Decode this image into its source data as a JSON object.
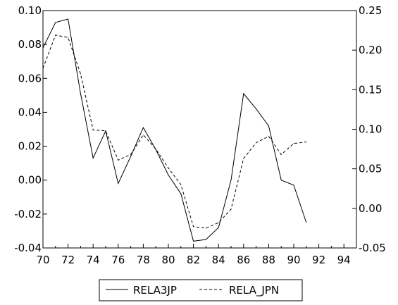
{
  "chart_data": {
    "type": "line",
    "title": "",
    "xlabel": "",
    "x": [
      70,
      71,
      72,
      73,
      74,
      75,
      76,
      77,
      78,
      79,
      80,
      81,
      82,
      83,
      84,
      85,
      86,
      87,
      88,
      89,
      90,
      91
    ],
    "x_ticks": [
      70,
      72,
      74,
      76,
      78,
      80,
      82,
      84,
      86,
      88,
      90,
      92,
      94
    ],
    "xlim": [
      70,
      95
    ],
    "y_left": {
      "ylim": [
        -0.04,
        0.1
      ],
      "ticks": [
        -0.04,
        -0.02,
        0.0,
        0.02,
        0.04,
        0.06,
        0.08,
        0.1
      ],
      "tick_labels": [
        "-0.04",
        "-0.02",
        "0.00",
        "0.02",
        "0.04",
        "0.06",
        "0.08",
        "0.10"
      ]
    },
    "y_right": {
      "ylim": [
        -0.05,
        0.25
      ],
      "ticks": [
        -0.05,
        0.0,
        0.05,
        0.1,
        0.15,
        0.2,
        0.25
      ],
      "tick_labels": [
        "-0.05",
        "0.00",
        "0.05",
        "0.10",
        "0.15",
        "0.20",
        "0.25"
      ]
    },
    "series": [
      {
        "name": "RELA3JP",
        "axis": "left",
        "style": "solid",
        "color": "#000000",
        "values": [
          0.078,
          0.093,
          0.095,
          0.051,
          0.013,
          0.029,
          -0.002,
          0.014,
          0.031,
          0.018,
          0.003,
          -0.008,
          -0.036,
          -0.035,
          -0.028,
          0.0,
          0.051,
          0.042,
          0.032,
          0.0,
          -0.003,
          -0.025
        ]
      },
      {
        "name": "RELA_JPN",
        "axis": "right",
        "style": "dashed",
        "color": "#000000",
        "values": [
          0.177,
          0.219,
          0.216,
          0.17,
          0.099,
          0.098,
          0.061,
          0.068,
          0.093,
          0.075,
          0.051,
          0.03,
          -0.023,
          -0.025,
          -0.018,
          -0.001,
          0.063,
          0.083,
          0.091,
          0.068,
          0.082,
          0.084
        ]
      }
    ],
    "grid": false,
    "legend_position": "bottom"
  }
}
